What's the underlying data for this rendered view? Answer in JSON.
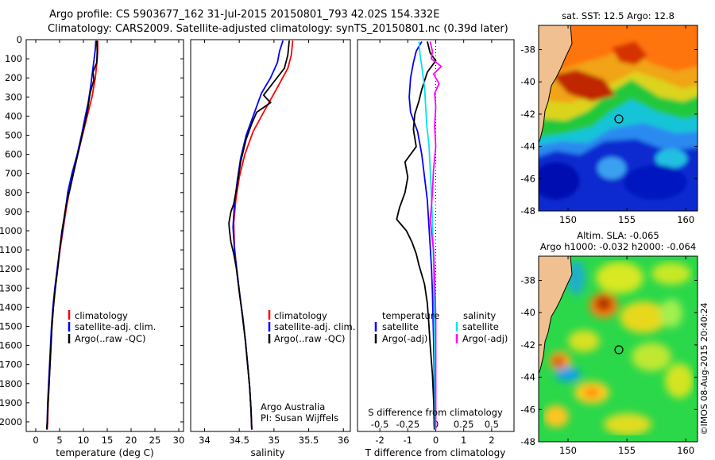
{
  "header": {
    "title_line1": "Argo profile: CS 5903677_162 31-Jul-2015 20150801_793 42.02S 154.332E",
    "title_line2": "Climatology: CARS2009. Satellite-adjusted climatology: synTS_20150801.nc (0.39d later)"
  },
  "footer": {
    "stamp": "©IMOS 08-Aug-2015 20:40:24",
    "argo_australia": "Argo Australia",
    "pi": "PI: Susan Wijffels"
  },
  "colors": {
    "climatology": "#ff0000",
    "satellite": "#0000ff",
    "argo": "#000000",
    "sal_satellite": "#00e5ee",
    "sal_argo": "#ff00ff"
  },
  "chart_data": [
    {
      "id": "temperature",
      "type": "line",
      "xlabel": "temperature (deg C)",
      "xlim": [
        -2,
        31
      ],
      "xticks": [
        0,
        5,
        10,
        15,
        20,
        25,
        30
      ],
      "ylim": [
        0,
        2050
      ],
      "yticks": [
        0,
        100,
        200,
        300,
        400,
        500,
        600,
        700,
        800,
        900,
        1000,
        1100,
        1200,
        1300,
        1400,
        1500,
        1600,
        1700,
        1800,
        1900,
        2000
      ],
      "legend": [
        "climatology",
        "satellite-adj. clim.",
        "Argo(..raw -QC)"
      ],
      "series": [
        {
          "name": "climatology",
          "color": "climatology",
          "points": [
            [
              13.0,
              5
            ],
            [
              13.0,
              50
            ],
            [
              12.9,
              100
            ],
            [
              12.5,
              200
            ],
            [
              11.8,
              300
            ],
            [
              10.8,
              400
            ],
            [
              9.8,
              500
            ],
            [
              8.8,
              600
            ],
            [
              7.8,
              700
            ],
            [
              7.0,
              800
            ],
            [
              6.3,
              900
            ],
            [
              5.7,
              1000
            ],
            [
              5.1,
              1100
            ],
            [
              4.6,
              1200
            ],
            [
              4.1,
              1300
            ],
            [
              3.7,
              1400
            ],
            [
              3.4,
              1500
            ],
            [
              3.2,
              1600
            ],
            [
              3.0,
              1700
            ],
            [
              2.8,
              1800
            ],
            [
              2.6,
              1900
            ],
            [
              2.5,
              2000
            ],
            [
              2.4,
              2040
            ]
          ]
        },
        {
          "name": "satellite-adj. clim.",
          "color": "satellite",
          "points": [
            [
              12.6,
              5
            ],
            [
              12.5,
              50
            ],
            [
              12.0,
              150
            ],
            [
              11.5,
              250
            ],
            [
              11.0,
              330
            ],
            [
              10.4,
              400
            ],
            [
              9.6,
              500
            ],
            [
              8.7,
              600
            ],
            [
              7.6,
              700
            ],
            [
              6.7,
              800
            ],
            [
              6.2,
              900
            ],
            [
              5.6,
              1000
            ],
            [
              5.0,
              1100
            ],
            [
              4.5,
              1200
            ],
            [
              4.0,
              1300
            ],
            [
              3.6,
              1400
            ],
            [
              3.3,
              1500
            ],
            [
              3.1,
              1600
            ],
            [
              2.9,
              1700
            ],
            [
              2.7,
              1800
            ],
            [
              2.5,
              1900
            ],
            [
              2.4,
              2000
            ],
            [
              2.3,
              2040
            ]
          ]
        },
        {
          "name": "Argo(..raw -QC)",
          "color": "argo",
          "points": [
            [
              12.8,
              5
            ],
            [
              12.9,
              60
            ],
            [
              12.8,
              120
            ],
            [
              12.0,
              170
            ],
            [
              12.2,
              210
            ],
            [
              11.4,
              280
            ],
            [
              10.8,
              380
            ],
            [
              10.0,
              470
            ],
            [
              9.0,
              580
            ],
            [
              8.0,
              690
            ],
            [
              7.2,
              780
            ],
            [
              6.4,
              860
            ],
            [
              5.9,
              940
            ],
            [
              5.5,
              1000
            ],
            [
              5.0,
              1100
            ],
            [
              4.6,
              1200
            ],
            [
              4.1,
              1300
            ],
            [
              3.7,
              1400
            ],
            [
              3.4,
              1500
            ],
            [
              3.2,
              1600
            ],
            [
              3.0,
              1700
            ],
            [
              2.8,
              1800
            ],
            [
              2.6,
              1900
            ],
            [
              2.4,
              2000
            ],
            [
              2.3,
              2040
            ]
          ]
        }
      ]
    },
    {
      "id": "salinity",
      "type": "line",
      "xlabel": "salinity",
      "xlim": [
        33.8,
        36.1
      ],
      "xticks": [
        34,
        34.5,
        35,
        35.5,
        36
      ],
      "ylim": [
        0,
        2050
      ],
      "legend": [
        "climatology",
        "satellite-adj. clim.",
        "Argo(..raw -QC)"
      ],
      "series": [
        {
          "name": "climatology",
          "color": "climatology",
          "points": [
            [
              35.27,
              5
            ],
            [
              35.25,
              80
            ],
            [
              35.2,
              150
            ],
            [
              35.05,
              250
            ],
            [
              34.88,
              360
            ],
            [
              34.7,
              480
            ],
            [
              34.58,
              600
            ],
            [
              34.5,
              720
            ],
            [
              34.45,
              840
            ],
            [
              34.42,
              960
            ],
            [
              34.43,
              1080
            ],
            [
              34.46,
              1200
            ],
            [
              34.5,
              1320
            ],
            [
              34.55,
              1450
            ],
            [
              34.59,
              1580
            ],
            [
              34.62,
              1700
            ],
            [
              34.65,
              1820
            ],
            [
              34.67,
              1940
            ],
            [
              34.68,
              2040
            ]
          ]
        },
        {
          "name": "satellite-adj. clim.",
          "color": "satellite",
          "points": [
            [
              35.13,
              5
            ],
            [
              35.08,
              60
            ],
            [
              35.05,
              120
            ],
            [
              34.95,
              200
            ],
            [
              34.82,
              280
            ],
            [
              34.72,
              380
            ],
            [
              34.6,
              500
            ],
            [
              34.52,
              620
            ],
            [
              34.47,
              740
            ],
            [
              34.43,
              860
            ],
            [
              34.41,
              980
            ],
            [
              34.43,
              1100
            ],
            [
              34.47,
              1220
            ],
            [
              34.51,
              1340
            ],
            [
              34.55,
              1460
            ],
            [
              34.59,
              1580
            ],
            [
              34.62,
              1700
            ],
            [
              34.65,
              1820
            ],
            [
              34.67,
              1940
            ],
            [
              34.68,
              2040
            ]
          ]
        },
        {
          "name": "Argo(..raw -QC)",
          "color": "argo",
          "points": [
            [
              35.22,
              5
            ],
            [
              35.2,
              80
            ],
            [
              35.15,
              150
            ],
            [
              35.0,
              220
            ],
            [
              34.85,
              290
            ],
            [
              34.95,
              330
            ],
            [
              34.75,
              380
            ],
            [
              34.68,
              440
            ],
            [
              34.6,
              520
            ],
            [
              34.52,
              640
            ],
            [
              34.47,
              760
            ],
            [
              34.42,
              860
            ],
            [
              34.38,
              900
            ],
            [
              34.35,
              960
            ],
            [
              34.36,
              1000
            ],
            [
              34.38,
              1060
            ],
            [
              34.42,
              1120
            ],
            [
              34.46,
              1200
            ],
            [
              34.5,
              1320
            ],
            [
              34.55,
              1450
            ],
            [
              34.59,
              1580
            ],
            [
              34.62,
              1700
            ],
            [
              34.65,
              1820
            ],
            [
              34.67,
              1940
            ],
            [
              34.68,
              2040
            ]
          ]
        }
      ]
    },
    {
      "id": "difference",
      "type": "line",
      "xlabel": "T difference from climatology",
      "xlabel_top": "S difference from climatology",
      "xlim": [
        -2.8,
        2.8
      ],
      "xticks": [
        -2,
        -1,
        0,
        1,
        2
      ],
      "xticks_top": [
        -0.5,
        -0.25,
        0,
        0.25,
        0.5
      ],
      "ylim": [
        0,
        2050
      ],
      "legend_left_title": "temperature",
      "legend_right_title": "salinity",
      "legend": [
        "satellite",
        "Argo(-adj)",
        "satellite",
        "Argo(-adj)"
      ],
      "series": [
        {
          "name": "T satellite",
          "color": "satellite",
          "points": [
            [
              -0.5,
              10
            ],
            [
              -0.7,
              60
            ],
            [
              -0.8,
              120
            ],
            [
              -0.9,
              200
            ],
            [
              -0.95,
              300
            ],
            [
              -0.9,
              380
            ],
            [
              -0.65,
              480
            ],
            [
              -0.5,
              600
            ],
            [
              -0.4,
              720
            ],
            [
              -0.3,
              840
            ],
            [
              -0.25,
              960
            ],
            [
              -0.2,
              1080
            ],
            [
              -0.15,
              1200
            ],
            [
              -0.12,
              1320
            ],
            [
              -0.1,
              1440
            ],
            [
              -0.08,
              1560
            ],
            [
              -0.06,
              1700
            ],
            [
              -0.05,
              1850
            ],
            [
              -0.04,
              2040
            ]
          ]
        },
        {
          "name": "T Argo(-adj)",
          "color": "argo",
          "points": [
            [
              -0.3,
              10
            ],
            [
              -0.2,
              70
            ],
            [
              0.0,
              110
            ],
            [
              -0.3,
              170
            ],
            [
              -0.5,
              260
            ],
            [
              -0.6,
              320
            ],
            [
              -0.75,
              390
            ],
            [
              -0.8,
              470
            ],
            [
              -0.7,
              560
            ],
            [
              -1.1,
              640
            ],
            [
              -1.0,
              720
            ],
            [
              -1.1,
              800
            ],
            [
              -1.3,
              880
            ],
            [
              -1.4,
              940
            ],
            [
              -1.05,
              1000
            ],
            [
              -0.85,
              1060
            ],
            [
              -0.7,
              1120
            ],
            [
              -0.6,
              1180
            ],
            [
              -0.4,
              1280
            ],
            [
              -0.3,
              1380
            ],
            [
              -0.25,
              1480
            ],
            [
              -0.2,
              1600
            ],
            [
              -0.12,
              1750
            ],
            [
              -0.07,
              1900
            ],
            [
              -0.05,
              2040
            ]
          ]
        },
        {
          "name": "S satellite",
          "color": "sal_satellite",
          "points": [
            [
              -0.15,
              10
            ],
            [
              -0.14,
              80
            ],
            [
              -0.12,
              160
            ],
            [
              -0.1,
              250
            ],
            [
              -0.09,
              350
            ],
            [
              -0.08,
              450
            ],
            [
              -0.06,
              560
            ],
            [
              -0.05,
              680
            ],
            [
              -0.04,
              800
            ],
            [
              -0.03,
              950
            ],
            [
              -0.02,
              1150
            ],
            [
              -0.015,
              1400
            ],
            [
              -0.01,
              1700
            ],
            [
              -0.005,
              2040
            ]
          ]
        },
        {
          "name": "S Argo(-adj)",
          "color": "sal_argo",
          "points": [
            [
              -0.05,
              10
            ],
            [
              -0.03,
              60
            ],
            [
              -0.04,
              100
            ],
            [
              0.05,
              140
            ],
            [
              -0.02,
              180
            ],
            [
              0.03,
              230
            ],
            [
              -0.01,
              280
            ],
            [
              0.0,
              350
            ],
            [
              -0.01,
              450
            ],
            [
              0.0,
              560
            ],
            [
              -0.02,
              680
            ],
            [
              -0.03,
              800
            ],
            [
              -0.04,
              880
            ],
            [
              -0.05,
              940
            ],
            [
              -0.04,
              1000
            ],
            [
              -0.02,
              1100
            ],
            [
              -0.01,
              1250
            ],
            [
              0.0,
              1450
            ],
            [
              0.0,
              1700
            ],
            [
              0.0,
              2040
            ]
          ]
        }
      ]
    },
    {
      "id": "sst-map",
      "type": "heatmap",
      "title": "sat. SST: 12.5  Argo: 12.8",
      "xticks": [
        150,
        155,
        160
      ],
      "yticks": [
        -38,
        -40,
        -42,
        -44,
        -46,
        -48
      ],
      "xlim": [
        147.5,
        161
      ],
      "ylim": [
        -48,
        -36.5
      ],
      "marker": {
        "lon": 154.33,
        "lat": -42.02
      }
    },
    {
      "id": "sla-map",
      "type": "heatmap",
      "title_line1": "Altim. SLA: -0.065",
      "title_line2": "Argo h1000: -0.032  h2000: -0.064",
      "xticks": [
        150,
        155,
        160
      ],
      "yticks": [
        -38,
        -40,
        -42,
        -44,
        -46,
        -48
      ],
      "xlim": [
        147.5,
        161
      ],
      "ylim": [
        -48,
        -36.5
      ],
      "marker": {
        "lon": 154.33,
        "lat": -42.02
      }
    }
  ]
}
